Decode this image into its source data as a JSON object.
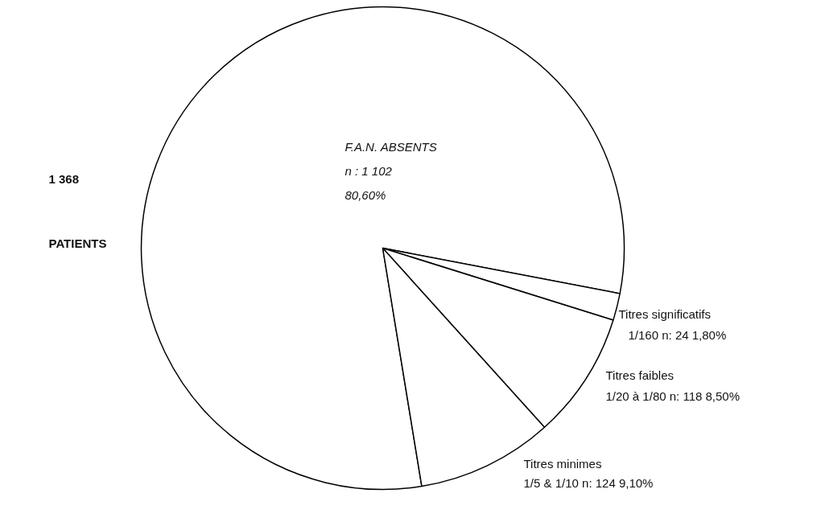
{
  "chart_data": {
    "type": "pie",
    "categories": [
      "F.A.N.  ABSENTS",
      "Titres significatifs",
      "Titres faibles",
      "Titres minimes"
    ],
    "values": [
      80.6,
      1.8,
      8.5,
      9.1
    ],
    "value_labels": [
      "80,60%",
      "1,80%",
      "8,50%",
      "9,10%"
    ],
    "colors": [
      "#ffffff",
      "#ffffff",
      "#ffffff",
      "#ffffff"
    ],
    "annotations": [
      "n : 1 102",
      "1/160   n: 24",
      "1/20  à  1/80   n: 118",
      "1/5  &  1/10   n: 124",
      "1 368",
      "PATIENTS"
    ]
  }
}
